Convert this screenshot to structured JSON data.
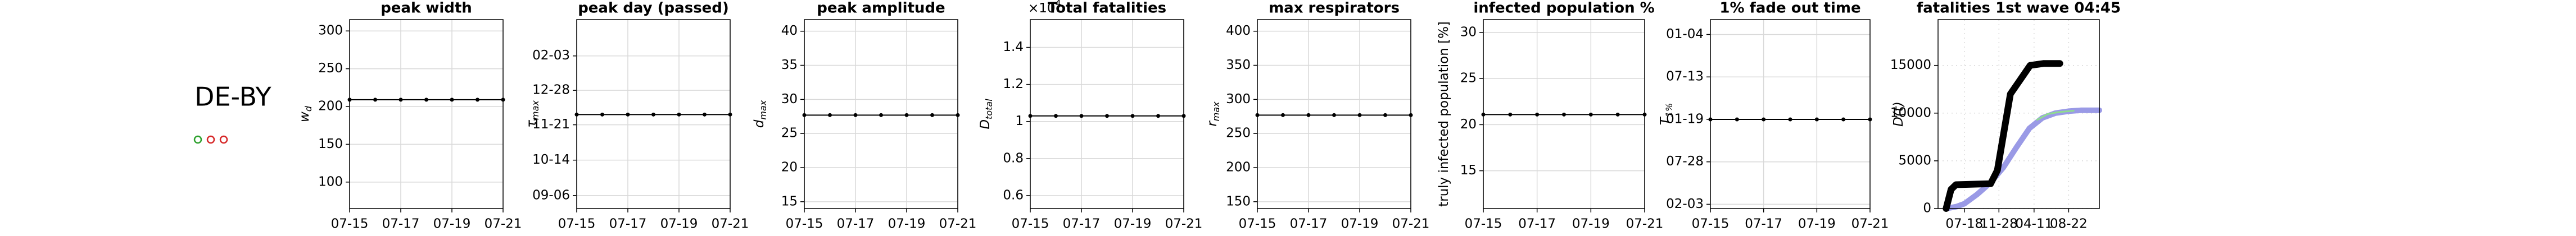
{
  "region": "DE-BY",
  "indicators": [
    {
      "color": "#2ca02c"
    },
    {
      "color": "#d62728"
    },
    {
      "color": "#d62728"
    }
  ],
  "chart_data": [
    {
      "type": "line",
      "title": "peak width",
      "ylabel": "w",
      "ylabel_sub": "d",
      "x": [
        0,
        1,
        2,
        3,
        4,
        5,
        6
      ],
      "values": [
        209,
        209,
        209,
        209,
        209,
        209,
        209
      ],
      "color": "#000000",
      "xlim": [
        0,
        6
      ],
      "xticks": [
        {
          "value": 0,
          "label": "07-15"
        },
        {
          "value": 2,
          "label": "07-17"
        },
        {
          "value": 4,
          "label": "07-19"
        },
        {
          "value": 6,
          "label": "07-21"
        }
      ],
      "ylim": [
        65,
        315
      ],
      "yticks": [
        300,
        250,
        200,
        150,
        100
      ],
      "grid": true
    },
    {
      "type": "line",
      "title": "peak day (passed)",
      "ylabel": "τ",
      "ylabel_sub": "max",
      "x": [
        0,
        1,
        2,
        3,
        4,
        5,
        6
      ],
      "values": [
        87,
        87,
        87,
        87,
        87,
        87,
        87
      ],
      "color": "#000000",
      "xlim": [
        0,
        6
      ],
      "xticks": [
        {
          "value": 0,
          "label": "07-15"
        },
        {
          "value": 2,
          "label": "07-17"
        },
        {
          "value": 4,
          "label": "07-19"
        },
        {
          "value": 6,
          "label": "07-21"
        }
      ],
      "ylim": [
        -14,
        189
      ],
      "yticks": [
        {
          "value": 150,
          "label": "02-03"
        },
        {
          "value": 113,
          "label": "12-28"
        },
        {
          "value": 76,
          "label": "11-21"
        },
        {
          "value": 38,
          "label": "10-14"
        },
        {
          "value": 0,
          "label": "09-06"
        }
      ],
      "grid": true
    },
    {
      "type": "line",
      "title": "peak amplitude",
      "ylabel": "d",
      "ylabel_sub": "max",
      "x": [
        0,
        1,
        2,
        3,
        4,
        5,
        6
      ],
      "values": [
        27.7,
        27.7,
        27.7,
        27.7,
        27.7,
        27.7,
        27.7
      ],
      "color": "#000000",
      "xlim": [
        0,
        6
      ],
      "xticks": [
        {
          "value": 0,
          "label": "07-15"
        },
        {
          "value": 2,
          "label": "07-17"
        },
        {
          "value": 4,
          "label": "07-19"
        },
        {
          "value": 6,
          "label": "07-21"
        }
      ],
      "ylim": [
        14,
        41.7
      ],
      "yticks": [
        40,
        35,
        30,
        25,
        20,
        15
      ],
      "grid": true
    },
    {
      "type": "line",
      "title": "Total fatalities",
      "ylabel": "D",
      "ylabel_sub": "total",
      "y_offset": "×10",
      "y_offset_exp": "4",
      "x": [
        0,
        1,
        2,
        3,
        4,
        5,
        6
      ],
      "values": [
        1.03,
        1.03,
        1.03,
        1.03,
        1.03,
        1.03,
        1.03
      ],
      "color": "#000000",
      "xlim": [
        0,
        6
      ],
      "xticks": [
        {
          "value": 0,
          "label": "07-15"
        },
        {
          "value": 2,
          "label": "07-17"
        },
        {
          "value": 4,
          "label": "07-19"
        },
        {
          "value": 6,
          "label": "07-21"
        }
      ],
      "ylim": [
        0.53,
        1.55
      ],
      "yticks": [
        1.4,
        1.2,
        1,
        0.8,
        0.6
      ],
      "grid": true
    },
    {
      "type": "line",
      "title": "max respirators",
      "ylabel": "r",
      "ylabel_sub": "max",
      "x": [
        0,
        1,
        2,
        3,
        4,
        5,
        6
      ],
      "values": [
        277,
        277,
        277,
        277,
        277,
        277,
        277
      ],
      "color": "#000000",
      "xlim": [
        0,
        6
      ],
      "xticks": [
        {
          "value": 0,
          "label": "07-15"
        },
        {
          "value": 2,
          "label": "07-17"
        },
        {
          "value": 4,
          "label": "07-19"
        },
        {
          "value": 6,
          "label": "07-21"
        }
      ],
      "ylim": [
        140,
        417
      ],
      "yticks": [
        400,
        350,
        300,
        250,
        200,
        150
      ],
      "grid": true
    },
    {
      "type": "line",
      "title": "infected population %",
      "ylabel": "truly infected population [%]",
      "x": [
        0,
        1,
        2,
        3,
        4,
        5,
        6
      ],
      "values": [
        21.1,
        21.1,
        21.1,
        21.1,
        21.1,
        21.1,
        21.1
      ],
      "color": "#000000",
      "xlim": [
        0,
        6
      ],
      "xticks": [
        {
          "value": 0,
          "label": "07-15"
        },
        {
          "value": 2,
          "label": "07-17"
        },
        {
          "value": 4,
          "label": "07-19"
        },
        {
          "value": 6,
          "label": "07-21"
        }
      ],
      "ylim": [
        10.9,
        31.4
      ],
      "yticks": [
        30,
        25,
        20,
        15
      ],
      "grid": true
    },
    {
      "type": "line",
      "title": "1% fade out time",
      "ylabel": "T",
      "ylabel_sub": "1%",
      "x": [
        0,
        1,
        2,
        3,
        4,
        5,
        6
      ],
      "values": [
        2,
        2,
        2,
        2,
        2,
        2,
        2
      ],
      "color": "#000000",
      "xlim": [
        0,
        6
      ],
      "xticks": [
        {
          "value": 0,
          "label": "07-15"
        },
        {
          "value": 2,
          "label": "07-17"
        },
        {
          "value": 4,
          "label": "07-19"
        },
        {
          "value": 6,
          "label": "07-21"
        }
      ],
      "ylim": [
        -0.1,
        4.35
      ],
      "yticks": [
        {
          "value": 4,
          "label": "01-04"
        },
        {
          "value": 3,
          "label": "07-13"
        },
        {
          "value": 2,
          "label": "01-19"
        },
        {
          "value": 1,
          "label": "07-28"
        },
        {
          "value": 0,
          "label": "02-03"
        }
      ],
      "grid": true
    },
    {
      "type": "line",
      "title": "fatalities 1st wave 04:45",
      "ylabel": "D(t)",
      "xlim": [
        -101,
        519
      ],
      "xticks": [
        {
          "value": 0,
          "label": "07-18"
        },
        {
          "value": 133,
          "label": "11-28"
        },
        {
          "value": 268,
          "label": "04-11"
        },
        {
          "value": 401,
          "label": "08-22"
        }
      ],
      "ylim": [
        0,
        19800
      ],
      "yticks": [
        0,
        5000,
        10000,
        15000
      ],
      "grid": true,
      "grid_style": "dotted",
      "series": [
        {
          "color": "#9a9ae6",
          "x": [
            -70,
            -30,
            0,
            50,
            100,
            150,
            200,
            250,
            300,
            350,
            400,
            450,
            519
          ],
          "values": [
            0,
            200,
            500,
            1500,
            2700,
            4300,
            6400,
            8400,
            9500,
            10000,
            10200,
            10300,
            10300
          ]
        },
        {
          "color": "#8fdc8f",
          "x": [
            280,
            320,
            360,
            420
          ],
          "values": [
            9300,
            9900,
            10100,
            10250
          ]
        },
        {
          "color": "#000000",
          "x": [
            -70,
            -51,
            -32,
            101,
            127,
            152,
            177,
            215,
            253,
            304,
            367
          ],
          "values": [
            0,
            2000,
            2500,
            2600,
            4000,
            8000,
            12000,
            13500,
            15000,
            15200,
            15200
          ]
        }
      ]
    }
  ]
}
